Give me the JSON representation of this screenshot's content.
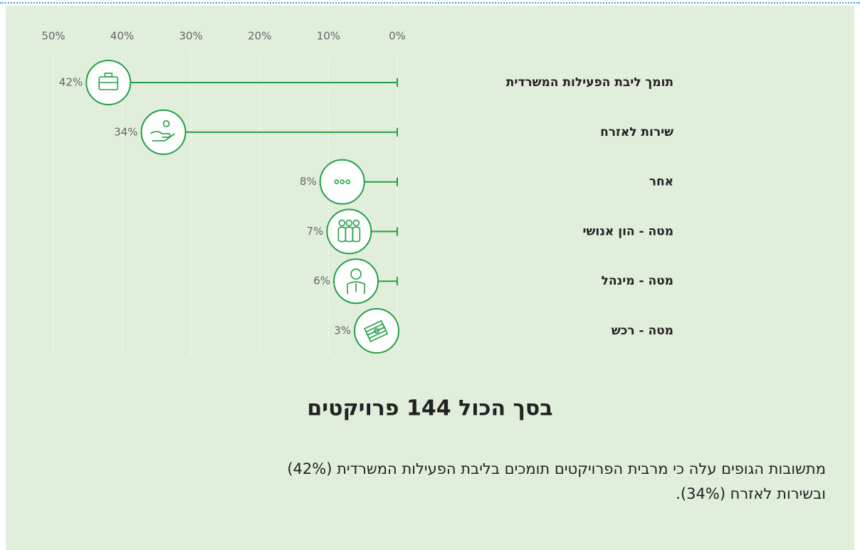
{
  "chart_data": {
    "type": "lollipop",
    "categories": [
      "תומך ליבת הפעילות המשרדית",
      "שירות לאזרח",
      "אחר",
      "מטה - הון אנושי",
      "מטה - מינהל",
      "מטה - רכש"
    ],
    "values": [
      42,
      34,
      8,
      7,
      6,
      3
    ],
    "value_labels": [
      "42%",
      "34%",
      "8%",
      "7%",
      "6%",
      "3%"
    ],
    "color": "#22a045",
    "xlim": [
      0,
      50
    ],
    "xticks": [
      {
        "value": 50,
        "label": "50%"
      },
      {
        "value": 40,
        "label": "40%"
      },
      {
        "value": 30,
        "label": "30%"
      },
      {
        "value": 20,
        "label": "20%"
      },
      {
        "value": 10,
        "label": "10%"
      },
      {
        "value": 0,
        "label": "0%"
      }
    ],
    "grid": true,
    "x_reversed": true,
    "title": "בסך הכול 144 פרויקטים",
    "caption": [
      "מתשובות הגופים עלה כי מרבית הפרויקטים תומכים בליבת הפעילות המשרדית (42%)",
      "ובשירות לאזרח (34%)."
    ]
  }
}
